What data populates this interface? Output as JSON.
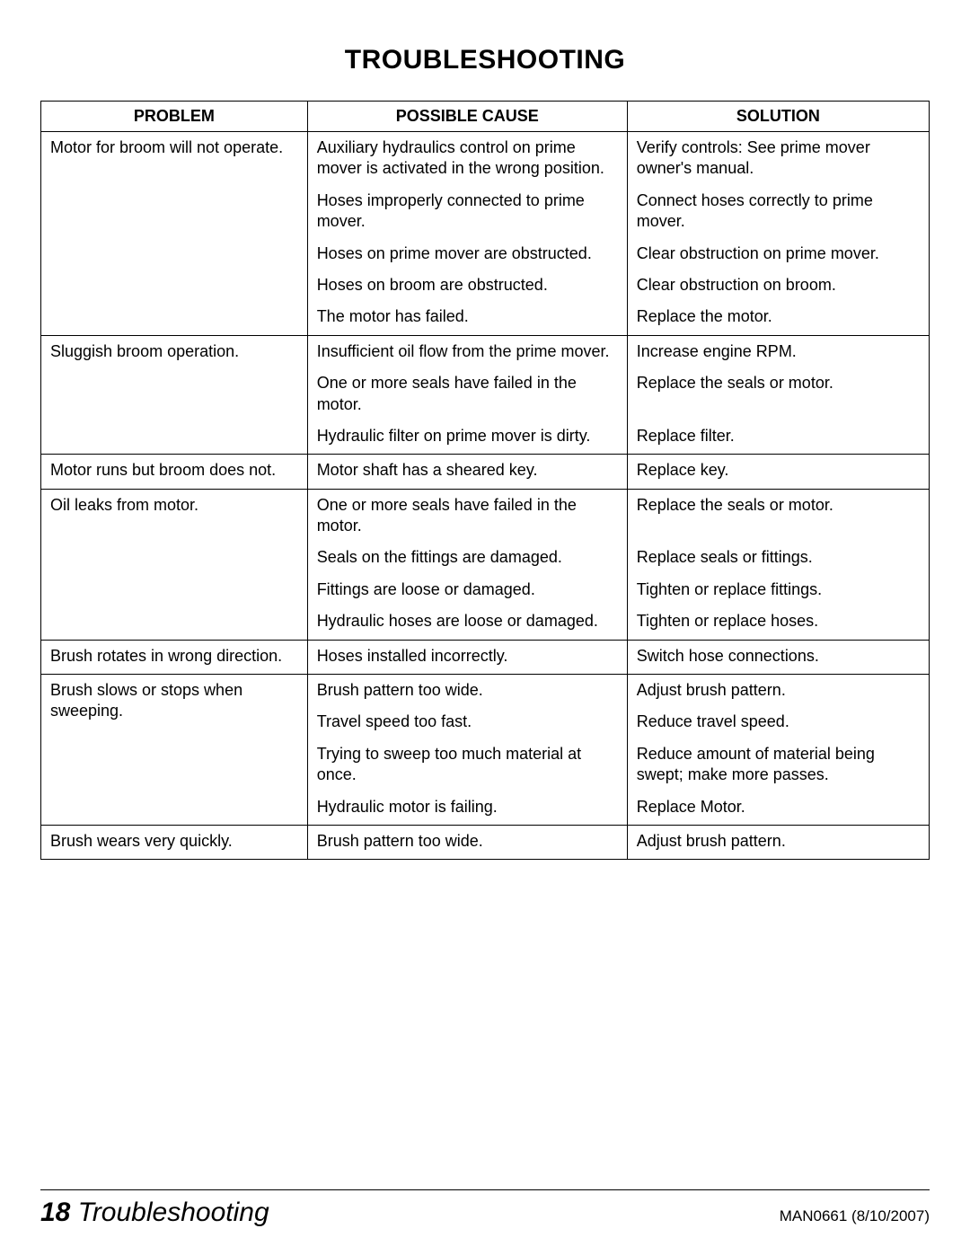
{
  "title": "TROUBLESHOOTING",
  "columns": [
    "PROBLEM",
    "POSSIBLE CAUSE",
    "SOLUTION"
  ],
  "groups": [
    {
      "problem": "Motor for broom will not operate.",
      "rows": [
        {
          "cause": "Auxiliary hydraulics control on prime mover is activated in the wrong position.",
          "solution": "Verify controls: See prime mover owner's manual."
        },
        {
          "cause": "Hoses improperly connected to prime mover.",
          "solution": "Connect hoses correctly to prime mover."
        },
        {
          "cause": "Hoses on prime mover are obstructed.",
          "solution": "Clear obstruction on prime mover."
        },
        {
          "cause": "Hoses on broom are obstructed.",
          "solution": "Clear obstruction on broom."
        },
        {
          "cause": "The motor has failed.",
          "solution": "Replace the motor."
        }
      ]
    },
    {
      "problem": "Sluggish broom operation.",
      "rows": [
        {
          "cause": "Insufficient oil flow from the prime mover.",
          "solution": "Increase engine RPM."
        },
        {
          "cause": "One or more seals have failed in the motor.",
          "solution": "Replace the seals or motor."
        },
        {
          "cause": "Hydraulic filter on prime mover is dirty.",
          "solution": "Replace filter."
        }
      ]
    },
    {
      "problem": "Motor runs but broom does not.",
      "rows": [
        {
          "cause": "Motor shaft has a sheared key.",
          "solution": "Replace key."
        }
      ]
    },
    {
      "problem": "Oil leaks from motor.",
      "rows": [
        {
          "cause": "One or more seals have failed in the motor.",
          "solution": "Replace the seals or motor."
        },
        {
          "cause": "Seals on the fittings are damaged.",
          "solution": "Replace seals or fittings."
        },
        {
          "cause": "Fittings are loose or damaged.",
          "solution": "Tighten or replace fittings."
        },
        {
          "cause": "Hydraulic hoses are loose or damaged.",
          "solution": "Tighten or replace hoses."
        }
      ]
    },
    {
      "problem": "Brush rotates in wrong direction.",
      "rows": [
        {
          "cause": "Hoses installed incorrectly.",
          "solution": "Switch hose connections."
        }
      ]
    },
    {
      "problem": "Brush slows or stops when sweeping.",
      "rows": [
        {
          "cause": "Brush pattern too wide.",
          "solution": "Adjust brush pattern."
        },
        {
          "cause": "Travel speed too fast.",
          "solution": "Reduce travel speed."
        },
        {
          "cause": "Trying to sweep too much material at once.",
          "solution": "Reduce amount of material being swept; make more passes."
        },
        {
          "cause": "Hydraulic motor is failing.",
          "solution": "Replace Motor."
        }
      ]
    },
    {
      "problem": "Brush wears very quickly.",
      "rows": [
        {
          "cause": "Brush pattern too wide.",
          "solution": "Adjust brush pattern."
        }
      ]
    }
  ],
  "footer": {
    "page_number": "18",
    "section": "Troubleshooting",
    "doc_id": "MAN0661 (8/10/2007)"
  },
  "style": {
    "background_color": "#ffffff",
    "text_color": "#000000",
    "border_color": "#000000",
    "title_fontsize": 30,
    "body_fontsize": 18,
    "footer_left_fontsize": 30,
    "footer_right_fontsize": 17
  }
}
